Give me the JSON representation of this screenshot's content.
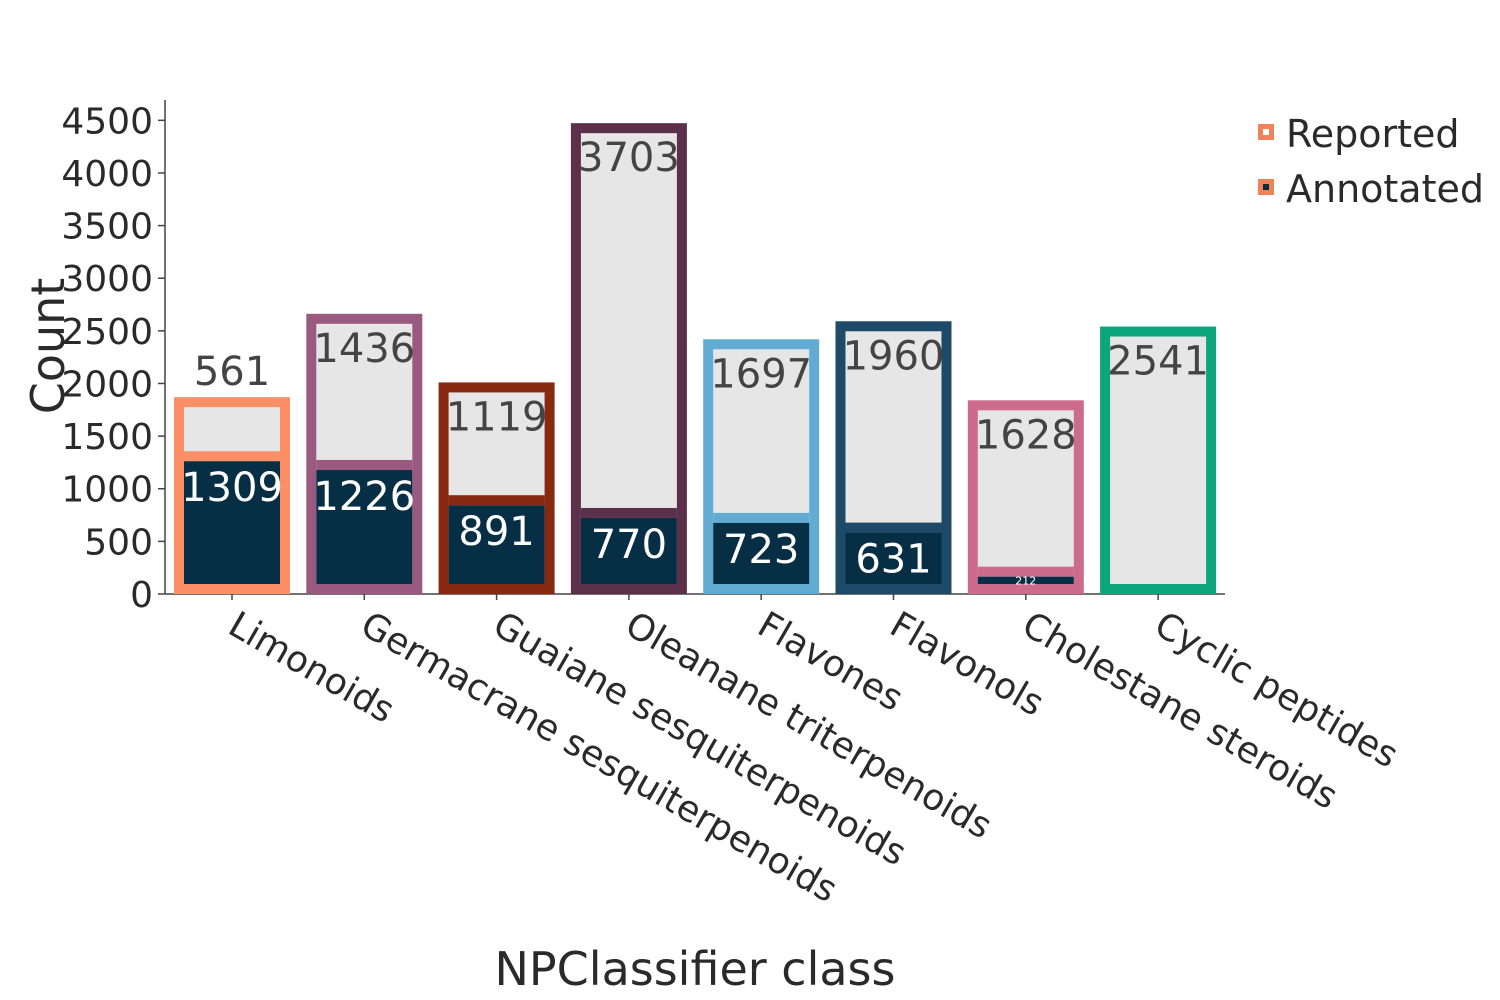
{
  "chart_data": {
    "type": "bar",
    "xlabel": "NPClassifier class",
    "ylabel": "Count",
    "ylim": [
      0,
      4700
    ],
    "yticks": [
      0,
      500,
      1000,
      1500,
      2000,
      2500,
      3000,
      3500,
      4000,
      4500
    ],
    "grid": false,
    "legend_position": "top-right",
    "categories": [
      "Limonoids",
      "Germacrane sesquiterpenoids",
      "Guaiane sesquiterpenoids",
      "Oleanane triterpenoids",
      "Flavones",
      "Flavonols",
      "Cholestane steroids",
      "Cyclic peptides"
    ],
    "series": [
      {
        "name": "Annotated",
        "values": [
          1309,
          1226,
          891,
          770,
          723,
          631,
          212,
          0
        ],
        "color": "#062f46"
      },
      {
        "name": "Reported",
        "values": [
          561,
          1436,
          1119,
          3703,
          1697,
          1960,
          1628,
          2541
        ],
        "color": "#e6e6e6"
      }
    ],
    "value_labels": {
      "Annotated": [
        "1309",
        "1226",
        "891",
        "770",
        "723",
        "631",
        "212",
        ""
      ],
      "Reported": [
        "561",
        "1436",
        "1119",
        "3703",
        "1697",
        "1960",
        "1628",
        "2541"
      ]
    },
    "outline_colors": [
      "#fc8f65",
      "#9a5a80",
      "#882911",
      "#5c2f4a",
      "#62acd4",
      "#1f4a67",
      "#cc6b8b",
      "#0ca57e"
    ],
    "legend": [
      {
        "label": "Reported",
        "swatch_outline": "#f0825a",
        "swatch_fill": "#ffffff"
      },
      {
        "label": "Annotated",
        "swatch_outline": "#f0825a",
        "swatch_fill": "#062f46"
      }
    ]
  }
}
